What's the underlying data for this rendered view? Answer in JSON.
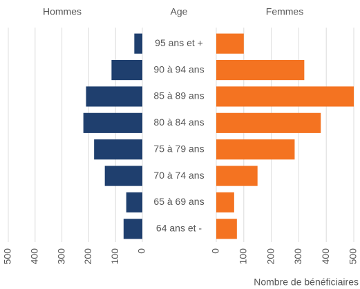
{
  "chart_data": {
    "type": "pyramid",
    "category_label": "Age",
    "x_label": "Nombre de bénéficiaires",
    "categories": [
      "95 ans et +",
      "90 à 94 ans",
      "85 à 89 ans",
      "80 à 84 ans",
      "75 à 79 ans",
      "70 à 74 ans",
      "65 à 69 ans",
      "64 ans et -"
    ],
    "series": [
      {
        "name": "Hommes",
        "color": "#1f3f6e",
        "values": [
          30,
          115,
          210,
          220,
          180,
          140,
          60,
          70
        ]
      },
      {
        "name": "Femmes",
        "color": "#f47321",
        "values": [
          100,
          320,
          500,
          380,
          285,
          150,
          65,
          75
        ]
      }
    ],
    "xlim": [
      0,
      500
    ],
    "xticks": [
      0,
      100,
      200,
      300,
      400,
      500
    ],
    "grid": true
  }
}
